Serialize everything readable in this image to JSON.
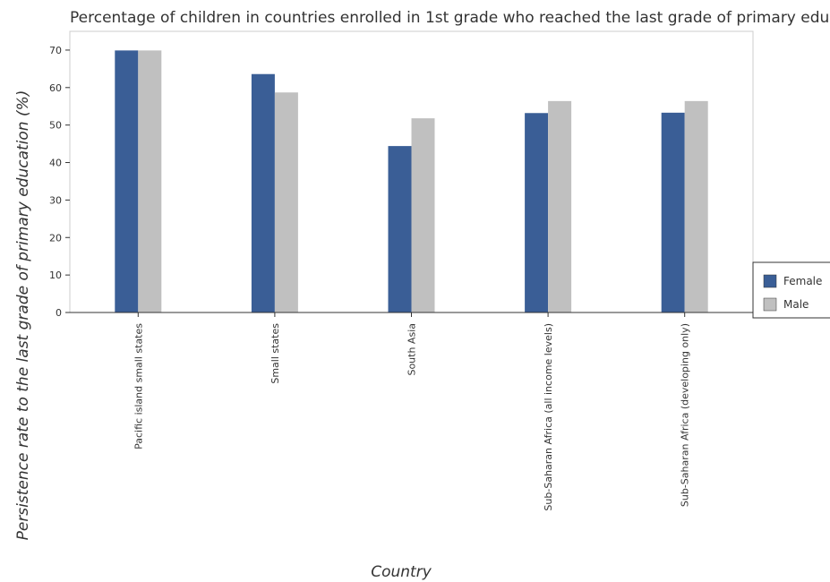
{
  "chart_data": {
    "type": "bar",
    "title": "Percentage of children in countries enrolled in 1st grade who reached the last grade of primary education",
    "xlabel": "Country",
    "ylabel": "Persistence rate to the last grade of primary education (%)",
    "categories": [
      "Pacific island small states",
      "Small states",
      "South Asia",
      "Sub-Saharan Africa (all income levels)",
      "Sub-Saharan Africa (developing only)"
    ],
    "series": [
      {
        "name": "Female",
        "color": "#3a5e96",
        "values": [
          69.9,
          63.6,
          44.4,
          53.2,
          53.3
        ]
      },
      {
        "name": "Male",
        "color": "#c0c0c0",
        "values": [
          69.9,
          58.7,
          51.8,
          56.4,
          56.4
        ]
      }
    ],
    "ylim": [
      0,
      75
    ],
    "yticks": [
      0,
      10,
      20,
      30,
      40,
      50,
      60,
      70
    ],
    "grid": false,
    "legend_position": "right"
  }
}
